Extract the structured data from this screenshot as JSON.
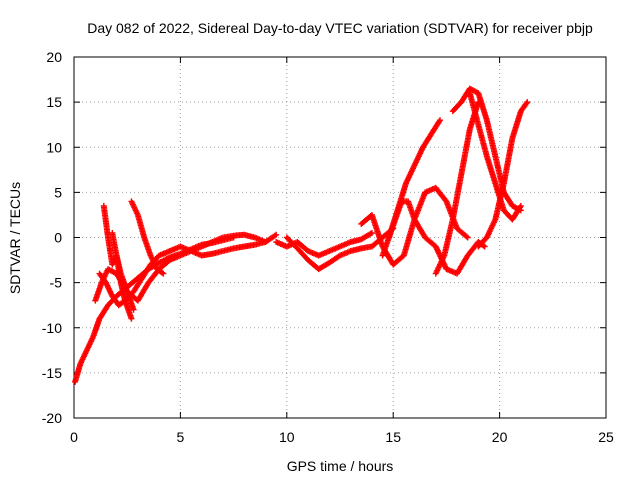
{
  "chart_data": {
    "type": "scatter",
    "title": "Day 082 of 2022, Sidereal Day-to-day VTEC variation (SDTVAR) for receiver pbjp",
    "xlabel": "GPS time / hours",
    "ylabel": "SDTVAR / TECUs",
    "xlim": [
      0,
      25
    ],
    "ylim": [
      -20,
      20
    ],
    "xticks": [
      0,
      5,
      10,
      15,
      20,
      25
    ],
    "yticks": [
      -20,
      -15,
      -10,
      -5,
      0,
      5,
      10,
      15,
      20
    ],
    "grid": true,
    "marker": "+",
    "colors": {
      "series": "#ff0000",
      "grid": "#a0a0a0",
      "axis": "#000000"
    },
    "series": [
      {
        "name": "track-1",
        "x": [
          0.05,
          0.3,
          0.6,
          0.9,
          1.2,
          1.6,
          2.0,
          2.5,
          3.0,
          3.5,
          4.0,
          4.5,
          5.0,
          5.5,
          6.0,
          6.5,
          7.0,
          7.5
        ],
        "y": [
          -16,
          -14,
          -12.5,
          -11,
          -9,
          -7.5,
          -6.5,
          -5.5,
          -4.5,
          -3.5,
          -2.8,
          -2.2,
          -1.8,
          -1.3,
          -0.8,
          -0.6,
          -0.3,
          0
        ]
      },
      {
        "name": "track-2",
        "x": [
          1.0,
          1.3,
          1.6,
          2.0,
          2.5,
          3.0,
          3.5,
          4.0,
          4.5,
          5.0,
          5.5,
          6.0,
          6.5,
          7.0,
          7.5,
          8.0,
          8.5,
          9.0,
          9.5
        ],
        "y": [
          -7,
          -5,
          -3.5,
          -4,
          -6,
          -7,
          -5,
          -3.5,
          -2.5,
          -2,
          -1.5,
          -1,
          -0.5,
          0,
          0.2,
          0.3,
          0,
          -0.5,
          0.3
        ]
      },
      {
        "name": "track-3",
        "x": [
          1.2,
          1.5,
          1.8,
          2.1,
          2.4,
          2.8,
          3.2,
          3.6,
          4.0,
          4.5,
          5.0,
          5.5,
          6.0,
          6.5,
          7.0,
          7.5,
          8.0,
          8.5,
          9.0
        ],
        "y": [
          -4,
          -5,
          -6.5,
          -7.5,
          -7,
          -6,
          -4.5,
          -3,
          -2,
          -1.5,
          -1,
          -1.5,
          -2,
          -1.8,
          -1.5,
          -1.2,
          -1,
          -0.8,
          -0.5
        ]
      },
      {
        "name": "track-4",
        "x": [
          1.4,
          1.6,
          1.8,
          2.0,
          2.2,
          2.5,
          2.8
        ],
        "y": [
          3.5,
          0,
          -3,
          -2,
          -4,
          -6,
          -8
        ]
      },
      {
        "name": "track-5",
        "x": [
          1.8,
          2.0,
          2.2,
          2.4,
          2.7
        ],
        "y": [
          0.5,
          -2,
          -5,
          -7,
          -9
        ]
      },
      {
        "name": "track-6",
        "x": [
          2.7,
          3.0,
          3.3,
          3.6,
          3.9,
          4.2
        ],
        "y": [
          4,
          2.5,
          0,
          -2,
          -3.5,
          -4
        ]
      },
      {
        "name": "track-7",
        "x": [
          9.5,
          10.0,
          10.5,
          11.0,
          11.5,
          12.0,
          12.5,
          13.0,
          13.5,
          14.0
        ],
        "y": [
          -0.5,
          -1,
          -0.5,
          -1.5,
          -2,
          -1.5,
          -1,
          -0.5,
          -0.2,
          0.5
        ]
      },
      {
        "name": "track-8",
        "x": [
          10.0,
          10.5,
          11.0,
          11.5,
          12.0,
          12.5,
          13.0,
          13.5,
          14.0,
          14.5,
          15.0
        ],
        "y": [
          0,
          -1.2,
          -2.5,
          -3.5,
          -2.8,
          -2,
          -1.5,
          -1.2,
          -1,
          0,
          1
        ]
      },
      {
        "name": "track-9",
        "x": [
          13.5,
          14.0,
          14.5,
          15.0,
          15.5,
          16.0,
          16.5,
          17.0,
          17.5,
          18.0,
          18.5
        ],
        "y": [
          1.5,
          2.5,
          -1,
          -3,
          -2,
          2,
          5,
          5.5,
          4,
          1,
          0
        ]
      },
      {
        "name": "track-10",
        "x": [
          14.5,
          14.8,
          15.1,
          15.4,
          15.7,
          16.0,
          16.5,
          17.0,
          17.5,
          18.0,
          18.5,
          19.0,
          19.3
        ],
        "y": [
          -2,
          0,
          2,
          4,
          4,
          2,
          0,
          -1,
          -3.5,
          -4,
          -2,
          -0.5,
          -1
        ]
      },
      {
        "name": "track-11",
        "x": [
          14.8,
          15.2,
          15.6,
          16.0,
          16.4,
          16.8,
          17.2
        ],
        "y": [
          0,
          3,
          6,
          8,
          10,
          11.5,
          13
        ]
      },
      {
        "name": "track-12",
        "x": [
          17.0,
          17.4,
          17.8,
          18.2,
          18.6,
          19.0
        ],
        "y": [
          -4,
          -2,
          2,
          7,
          12,
          15
        ]
      },
      {
        "name": "track-13",
        "x": [
          17.8,
          18.2,
          18.6,
          19.0,
          19.4,
          19.8,
          20.2,
          20.6,
          21.0
        ],
        "y": [
          14,
          15,
          16.5,
          16,
          13,
          9,
          5,
          3.5,
          3
        ]
      },
      {
        "name": "track-14",
        "x": [
          19.0,
          19.4,
          19.8,
          20.2,
          20.6,
          21.0,
          21.3
        ],
        "y": [
          -1,
          0,
          2,
          6,
          11,
          14,
          15
        ]
      },
      {
        "name": "track-15",
        "x": [
          18.6,
          19.0,
          19.4,
          19.8,
          20.2,
          20.6,
          21.0
        ],
        "y": [
          16,
          12.5,
          9,
          6,
          3,
          2,
          3.5
        ]
      }
    ]
  }
}
